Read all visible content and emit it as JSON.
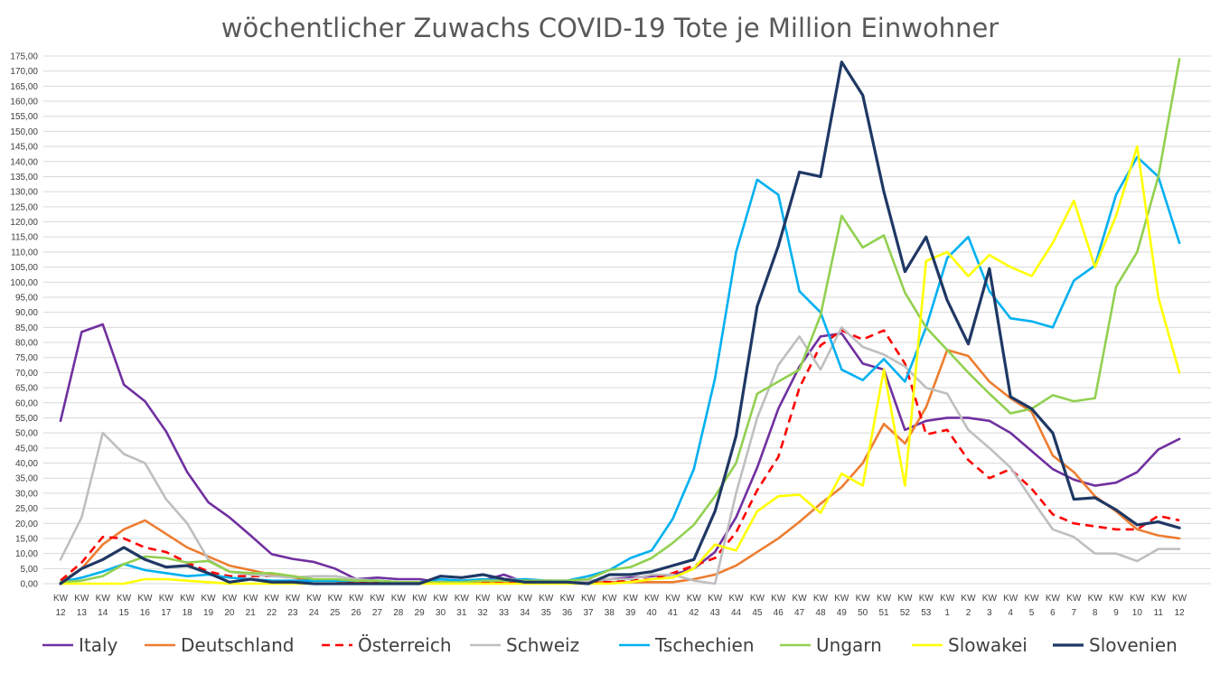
{
  "chart_data": {
    "type": "line",
    "title": "wöchentlicher Zuwachs COVID-19 Tote je Million Einwohner",
    "xlabel": "",
    "ylabel": "",
    "ylim": [
      0,
      175
    ],
    "grid": true,
    "legend_position": "bottom",
    "y_ticks": [
      "0,00",
      "5,00",
      "10,00",
      "15,00",
      "20,00",
      "25,00",
      "30,00",
      "35,00",
      "40,00",
      "45,00",
      "50,00",
      "55,00",
      "60,00",
      "65,00",
      "70,00",
      "75,00",
      "80,00",
      "85,00",
      "90,00",
      "95,00",
      "100,00",
      "105,00",
      "110,00",
      "115,00",
      "120,00",
      "125,00",
      "130,00",
      "135,00",
      "140,00",
      "145,00",
      "150,00",
      "155,00",
      "160,00",
      "165,00",
      "170,00",
      "175,00"
    ],
    "categories": [
      {
        "top": "KW",
        "bottom": "12"
      },
      {
        "top": "KW",
        "bottom": "13"
      },
      {
        "top": "KW",
        "bottom": "14"
      },
      {
        "top": "KW",
        "bottom": "15"
      },
      {
        "top": "KW",
        "bottom": "16"
      },
      {
        "top": "KW",
        "bottom": "17"
      },
      {
        "top": "KW",
        "bottom": "18"
      },
      {
        "top": "KW",
        "bottom": "19"
      },
      {
        "top": "KW",
        "bottom": "20"
      },
      {
        "top": "KW",
        "bottom": "21"
      },
      {
        "top": "KW",
        "bottom": "22"
      },
      {
        "top": "KW",
        "bottom": "23"
      },
      {
        "top": "KW",
        "bottom": "24"
      },
      {
        "top": "KW",
        "bottom": "25"
      },
      {
        "top": "KW",
        "bottom": "26"
      },
      {
        "top": "KW",
        "bottom": "27"
      },
      {
        "top": "KW",
        "bottom": "28"
      },
      {
        "top": "KW",
        "bottom": "29"
      },
      {
        "top": "KW",
        "bottom": "30"
      },
      {
        "top": "KW",
        "bottom": "31"
      },
      {
        "top": "KW",
        "bottom": "32"
      },
      {
        "top": "KW",
        "bottom": "33"
      },
      {
        "top": "KW",
        "bottom": "34"
      },
      {
        "top": "KW",
        "bottom": "35"
      },
      {
        "top": "KW",
        "bottom": "36"
      },
      {
        "top": "KW",
        "bottom": "37"
      },
      {
        "top": "KW",
        "bottom": "38"
      },
      {
        "top": "KW",
        "bottom": "39"
      },
      {
        "top": "KW",
        "bottom": "40"
      },
      {
        "top": "KW",
        "bottom": "41"
      },
      {
        "top": "KW",
        "bottom": "42"
      },
      {
        "top": "KW",
        "bottom": "43"
      },
      {
        "top": "KW",
        "bottom": "44"
      },
      {
        "top": "KW",
        "bottom": "45"
      },
      {
        "top": "KW",
        "bottom": "46"
      },
      {
        "top": "KW",
        "bottom": "47"
      },
      {
        "top": "KW",
        "bottom": "48"
      },
      {
        "top": "KW",
        "bottom": "49"
      },
      {
        "top": "KW",
        "bottom": "50"
      },
      {
        "top": "KW",
        "bottom": "51"
      },
      {
        "top": "KW",
        "bottom": "52"
      },
      {
        "top": "KW",
        "bottom": "53"
      },
      {
        "top": "KW",
        "bottom": "1"
      },
      {
        "top": "KW",
        "bottom": "2"
      },
      {
        "top": "KW",
        "bottom": "3"
      },
      {
        "top": "KW",
        "bottom": "4"
      },
      {
        "top": "KW",
        "bottom": "5"
      },
      {
        "top": "KW",
        "bottom": "6"
      },
      {
        "top": "KW",
        "bottom": "7"
      },
      {
        "top": "KW",
        "bottom": "8"
      },
      {
        "top": "KW",
        "bottom": "9"
      },
      {
        "top": "KW",
        "bottom": "10"
      },
      {
        "top": "KW",
        "bottom": "11"
      },
      {
        "top": "KW",
        "bottom": "12"
      }
    ],
    "series": [
      {
        "name": "Italy",
        "color": "#7030A0",
        "dash": false,
        "values": [
          54,
          83.5,
          86,
          66,
          60.5,
          50.5,
          37,
          27,
          22,
          16,
          9.8,
          8.2,
          7.2,
          5,
          1.5,
          2,
          1.5,
          1.5,
          0.5,
          0.5,
          1,
          3,
          0.5,
          0.5,
          0.5,
          0.5,
          1.5,
          2,
          2.5,
          3,
          5,
          10.5,
          22,
          38.5,
          58,
          72,
          82,
          83,
          73,
          71,
          51,
          54,
          55,
          55,
          54,
          50,
          44,
          38,
          34.5,
          32.5,
          33.5,
          37,
          44.5,
          48
        ]
      },
      {
        "name": "Deutschland",
        "color": "#ED7D31",
        "dash": false,
        "values": [
          0.5,
          5,
          13,
          18,
          21,
          16.5,
          12,
          9,
          6,
          4.5,
          3,
          2,
          1,
          1,
          0.5,
          0.5,
          0.5,
          0.5,
          0.5,
          0.5,
          0.5,
          0.5,
          0.5,
          0.5,
          0.5,
          0.5,
          0.5,
          0.5,
          0.5,
          0.5,
          1.5,
          3,
          6,
          10.5,
          15,
          20.5,
          26.5,
          32,
          40,
          53,
          46.5,
          58.5,
          77.5,
          75.5,
          67,
          61.5,
          57,
          42.5,
          37,
          29,
          24,
          18,
          16,
          15
        ]
      },
      {
        "name": "Österreich",
        "color": "#FF0000",
        "dash": true,
        "values": [
          1,
          7,
          15.5,
          15,
          12,
          10.5,
          7,
          4,
          2.5,
          2.5,
          2.5,
          2.5,
          1,
          1,
          0.5,
          0.5,
          0.5,
          0.5,
          0.5,
          0.5,
          0.5,
          0.5,
          0.5,
          0.5,
          0.5,
          0.5,
          0.5,
          1,
          1.5,
          3.5,
          6,
          8.5,
          17,
          31,
          42,
          65,
          79,
          84,
          81,
          84,
          73,
          49.5,
          51,
          41,
          35,
          38,
          31.5,
          23,
          20,
          19,
          18,
          18,
          22.5,
          21
        ]
      },
      {
        "name": "Schweiz",
        "color": "#BFBFBF",
        "dash": false,
        "values": [
          8,
          22,
          50,
          43,
          40,
          28,
          20,
          8,
          4,
          3,
          2.5,
          2,
          2.5,
          2.5,
          1.5,
          1,
          0.5,
          0.5,
          1,
          1,
          1,
          1.5,
          1.5,
          1,
          1,
          1,
          1.5,
          1.5,
          3,
          3,
          1,
          0,
          30,
          55,
          72.5,
          82,
          71,
          85,
          78.5,
          76,
          72,
          65,
          63,
          51,
          45,
          38.5,
          28,
          18,
          15.5,
          10,
          10,
          7.5,
          11.5,
          11.5
        ]
      },
      {
        "name": "Tschechien",
        "color": "#00B0F0",
        "dash": false,
        "values": [
          0.5,
          2,
          4,
          6.5,
          4.5,
          3.5,
          2.5,
          3,
          2,
          1.5,
          1,
          1,
          1,
          1,
          1,
          1,
          0.5,
          0.5,
          1.5,
          1,
          1.5,
          1,
          1.5,
          1,
          1,
          2.5,
          4.5,
          8.5,
          11,
          21.5,
          38,
          68,
          110,
          134,
          129,
          97,
          90,
          71,
          67.5,
          74.5,
          67,
          85,
          108,
          115,
          97,
          88,
          87,
          85,
          100.5,
          105.5,
          129,
          141.5,
          135,
          113
        ]
      },
      {
        "name": "Ungarn",
        "color": "#92D050",
        "dash": false,
        "values": [
          0.5,
          1,
          2.5,
          6.5,
          9,
          8.5,
          7,
          7.5,
          4,
          3.5,
          3.5,
          2.5,
          1.5,
          1.5,
          1,
          1,
          0.5,
          0.5,
          0.5,
          0.5,
          1,
          1,
          1,
          1,
          1,
          1.5,
          4.5,
          5.5,
          8.5,
          13.5,
          19.5,
          29,
          40,
          63,
          67,
          71,
          89,
          122,
          111.5,
          115.5,
          96.5,
          85,
          77.5,
          70,
          63,
          56.5,
          58,
          62.5,
          60.5,
          61.5,
          98.5,
          110,
          135,
          174
        ]
      },
      {
        "name": "Slowakei",
        "color": "#FFFF00",
        "dash": false,
        "values": [
          0,
          0,
          0,
          0,
          1.5,
          1.5,
          1,
          0.5,
          0,
          0,
          0,
          0,
          0,
          0,
          0,
          0,
          0,
          0,
          0,
          0,
          0,
          0,
          0,
          0,
          0,
          0,
          0,
          0.5,
          1.5,
          2,
          5,
          13,
          11,
          24,
          29,
          29.5,
          23.5,
          36.5,
          32.5,
          71,
          32.5,
          107,
          110,
          102,
          109,
          105,
          102,
          113,
          127,
          105,
          122,
          145,
          95,
          70
        ]
      },
      {
        "name": "Slovenien",
        "color": "#1F3864",
        "dash": false,
        "values": [
          0,
          5,
          8,
          12,
          8,
          5.5,
          6,
          3.5,
          0.5,
          1.5,
          0.5,
          0.5,
          0,
          0,
          0,
          0,
          0,
          0,
          2.5,
          2,
          3,
          1.5,
          0.5,
          0.5,
          0.5,
          0,
          3,
          3,
          4,
          6,
          8,
          24,
          49,
          92,
          112,
          136.5,
          135,
          173,
          162,
          130,
          103.5,
          115,
          94,
          79.5,
          104.5,
          62,
          58,
          50,
          28,
          28.5,
          24.5,
          19.5,
          20.5,
          18.5
        ]
      }
    ]
  }
}
